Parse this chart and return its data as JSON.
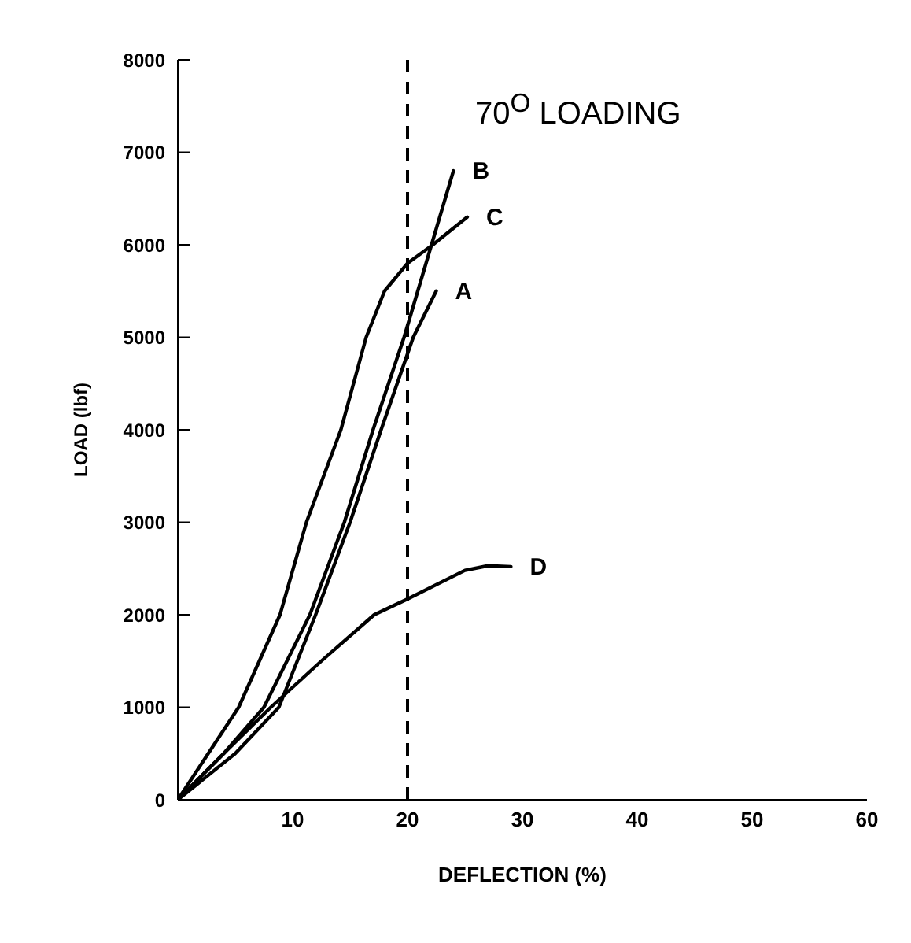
{
  "chart_data": {
    "type": "line",
    "title": "70$^{O}$ LOADING",
    "xlabel": "DEFLECTION (%)",
    "ylabel": "LOAD (lbf)",
    "xlim": [
      0,
      60
    ],
    "xticks": [
      10,
      20,
      30,
      40,
      50,
      60
    ],
    "ylim": [
      0,
      8000
    ],
    "yticks": [
      0,
      1000,
      2000,
      3000,
      4000,
      5000,
      6000,
      7000,
      8000
    ],
    "grid": false,
    "legend": false,
    "marker": "none",
    "line_style": "solid",
    "ref_lines": [
      {
        "axis": "x",
        "value": 20,
        "line_style": "dashed",
        "color": "#000000"
      }
    ],
    "series": [
      {
        "name": "A",
        "color": "#000000",
        "x": [
          0,
          5,
          8.8,
          12,
          15,
          17.7,
          20.5,
          22.5
        ],
        "values": [
          0,
          500,
          1000,
          2000,
          3000,
          4000,
          5000,
          5500
        ]
      },
      {
        "name": "B",
        "color": "#000000",
        "x": [
          0,
          4,
          7.5,
          11.5,
          14.5,
          17,
          19.7,
          24
        ],
        "values": [
          0,
          500,
          1000,
          2000,
          3000,
          4000,
          5000,
          6800
        ]
      },
      {
        "name": "C",
        "color": "#000000",
        "x": [
          0,
          5.3,
          8.9,
          11.2,
          14.2,
          16.4,
          18,
          20,
          22.2,
          25.2
        ],
        "values": [
          0,
          1000,
          2000,
          3000,
          4000,
          5000,
          5500,
          5800,
          6000,
          6300
        ]
      },
      {
        "name": "D",
        "color": "#000000",
        "x": [
          0,
          4,
          8.1,
          12.5,
          17.1,
          20,
          25,
          27,
          29
        ],
        "values": [
          0,
          500,
          1000,
          1500,
          2000,
          2170,
          2480,
          2530,
          2520
        ]
      }
    ]
  }
}
